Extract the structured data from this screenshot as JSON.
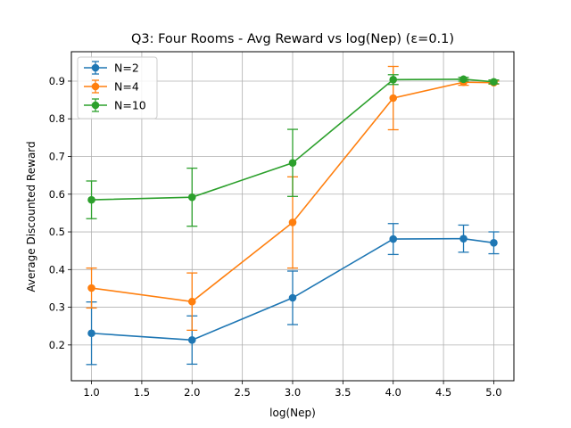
{
  "chart_data": {
    "type": "line",
    "title": "Q3: Four Rooms - Avg Reward vs log(Nep) (ε=0.1)",
    "xlabel": "log(Nep)",
    "ylabel": "Average Discounted Reward",
    "xlim": [
      0.8,
      5.2
    ],
    "ylim": [
      0.105,
      0.978
    ],
    "xticks": [
      1.0,
      1.5,
      2.0,
      2.5,
      3.0,
      3.5,
      4.0,
      4.5,
      5.0
    ],
    "xtick_labels": [
      "1.0",
      "1.5",
      "2.0",
      "2.5",
      "3.0",
      "3.5",
      "4.0",
      "4.5",
      "5.0"
    ],
    "yticks": [
      0.2,
      0.3,
      0.4,
      0.5,
      0.6,
      0.7,
      0.8,
      0.9
    ],
    "ytick_labels": [
      "0.2",
      "0.3",
      "0.4",
      "0.5",
      "0.6",
      "0.7",
      "0.8",
      "0.9"
    ],
    "grid": true,
    "legend_position": "top-left",
    "x": [
      1.0,
      2.0,
      3.0,
      4.0,
      4.699,
      5.0
    ],
    "series": [
      {
        "name": "N=2",
        "color": "#1f77b4",
        "values": [
          0.231,
          0.213,
          0.325,
          0.481,
          0.482,
          0.471
        ],
        "err": [
          0.083,
          0.064,
          0.071,
          0.041,
          0.036,
          0.029
        ]
      },
      {
        "name": "N=4",
        "color": "#ff7f0e",
        "values": [
          0.351,
          0.315,
          0.525,
          0.855,
          0.897,
          0.896
        ],
        "err": [
          0.053,
          0.076,
          0.121,
          0.084,
          0.008,
          0.004
        ]
      },
      {
        "name": "N=10",
        "color": "#2ca02c",
        "values": [
          0.585,
          0.592,
          0.683,
          0.904,
          0.905,
          0.898
        ],
        "err": [
          0.05,
          0.077,
          0.089,
          0.013,
          0.005,
          0.005
        ]
      }
    ]
  }
}
